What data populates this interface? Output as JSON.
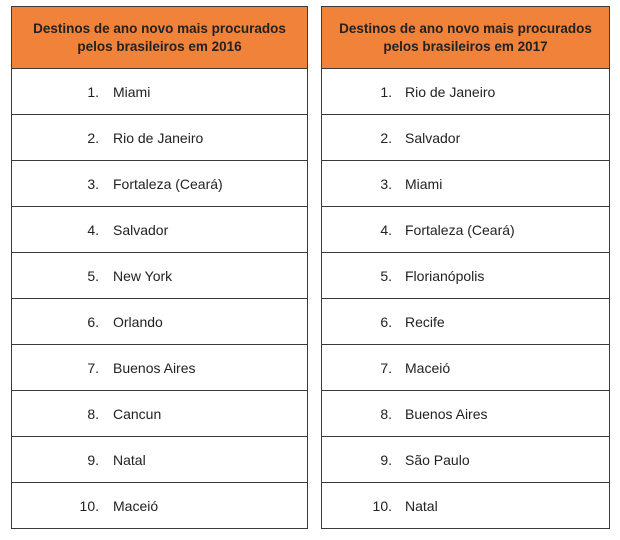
{
  "tables": [
    {
      "title": "Destinos de ano novo mais procurados pelos brasileiros em 2016",
      "rows": [
        {
          "num": "1.",
          "name": "Miami"
        },
        {
          "num": "2.",
          "name": "Rio de Janeiro"
        },
        {
          "num": "3.",
          "name": "Fortaleza (Ceará)"
        },
        {
          "num": "4.",
          "name": "Salvador"
        },
        {
          "num": "5.",
          "name": "New York"
        },
        {
          "num": "6.",
          "name": "Orlando"
        },
        {
          "num": "7.",
          "name": "Buenos Aires"
        },
        {
          "num": "8.",
          "name": "Cancun"
        },
        {
          "num": "9.",
          "name": "Natal"
        },
        {
          "num": "10.",
          "name": "Maceió"
        }
      ]
    },
    {
      "title": "Destinos de ano novo mais procurados pelos brasileiros em 2017",
      "rows": [
        {
          "num": "1.",
          "name": "Rio de Janeiro"
        },
        {
          "num": "2.",
          "name": "Salvador"
        },
        {
          "num": "3.",
          "name": "Miami"
        },
        {
          "num": "4.",
          "name": "Fortaleza (Ceará)"
        },
        {
          "num": "5.",
          "name": "Florianópolis"
        },
        {
          "num": "6.",
          "name": "Recife"
        },
        {
          "num": "7.",
          "name": "Maceió"
        },
        {
          "num": "8.",
          "name": "Buenos Aires"
        },
        {
          "num": "9.",
          "name": "São Paulo"
        },
        {
          "num": "10.",
          "name": "Natal"
        }
      ]
    }
  ],
  "colors": {
    "header_bg": "#f0823a",
    "border": "#3a3a3a",
    "text": "#222222"
  }
}
